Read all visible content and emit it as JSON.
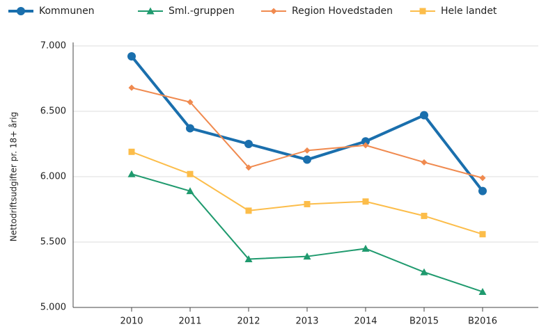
{
  "chart_data": {
    "type": "line",
    "ylabel": "Nettodriftsudgifter pr. 18+ årig",
    "categories": [
      "2010",
      "2011",
      "2012",
      "2013",
      "2014",
      "B2015",
      "B2016"
    ],
    "series": [
      {
        "name": "Kommunen",
        "color": "#1a6fad",
        "marker": "circle",
        "line_width": 4,
        "values": [
          6920,
          6370,
          6250,
          6130,
          6270,
          6470,
          5890
        ]
      },
      {
        "name": "Sml.-gruppen",
        "color": "#1f9a6e",
        "marker": "triangle",
        "line_width": 2,
        "values": [
          6020,
          5890,
          5370,
          5390,
          5450,
          5270,
          5120
        ]
      },
      {
        "name": "Region Hovedstaden",
        "color": "#f08a4f",
        "marker": "diamond",
        "line_width": 2,
        "values": [
          6680,
          6570,
          6070,
          6200,
          6240,
          6110,
          5990
        ]
      },
      {
        "name": "Hele landet",
        "color": "#fcbd4a",
        "marker": "square",
        "line_width": 2,
        "values": [
          6190,
          6020,
          5740,
          5790,
          5810,
          5700,
          5560
        ]
      }
    ],
    "ylim": [
      5000,
      7000
    ],
    "yticks": [
      {
        "value": 5000,
        "label": "5.000"
      },
      {
        "value": 5500,
        "label": "5.500"
      },
      {
        "value": 6000,
        "label": "6.000"
      },
      {
        "value": 6500,
        "label": "6.500"
      },
      {
        "value": 7000,
        "label": "7.000"
      }
    ],
    "grid": true,
    "legend": "top"
  }
}
